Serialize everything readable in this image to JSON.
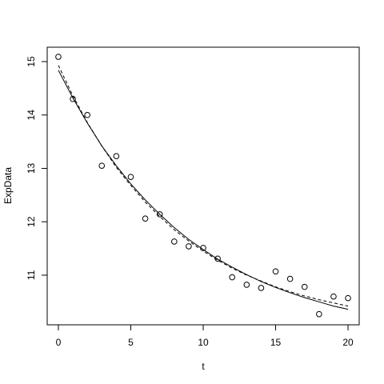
{
  "chart_data": {
    "type": "scatter",
    "x_label": "t",
    "y_label": "ExpData",
    "x": [
      0,
      1,
      2,
      3,
      4,
      5,
      6,
      7,
      8,
      9,
      10,
      11,
      12,
      13,
      14,
      15,
      16,
      17,
      18,
      19,
      20
    ],
    "values": [
      15.09,
      14.3,
      14.0,
      13.05,
      13.23,
      12.84,
      12.06,
      12.14,
      11.63,
      11.54,
      11.51,
      11.31,
      10.96,
      10.82,
      10.76,
      11.07,
      10.93,
      10.78,
      10.27,
      10.6,
      10.57
    ],
    "color": "#000000",
    "lines": [
      {
        "linestyle": "solid",
        "color": "#000000",
        "values": [
          14.84,
          14.32,
          13.85,
          13.42,
          13.05,
          12.71,
          12.41,
          12.14,
          11.89,
          11.67,
          11.48,
          11.3,
          11.15,
          11.01,
          10.88,
          10.77,
          10.67,
          10.58,
          10.5,
          10.42,
          10.36
        ]
      },
      {
        "linestyle": "dashed",
        "color": "#000000",
        "values": [
          14.93,
          14.36,
          13.86,
          13.42,
          13.02,
          12.68,
          12.37,
          12.1,
          11.85,
          11.64,
          11.45,
          11.28,
          11.13,
          11.0,
          10.89,
          10.78,
          10.69,
          10.61,
          10.54,
          10.48,
          10.42
        ]
      }
    ],
    "xlim": [
      -0.77,
      20.77
    ],
    "ylim": [
      10.07,
      15.27
    ],
    "xticks": [
      0,
      5,
      10,
      15,
      20
    ],
    "yticks": [
      11,
      12,
      13,
      14,
      15
    ]
  }
}
